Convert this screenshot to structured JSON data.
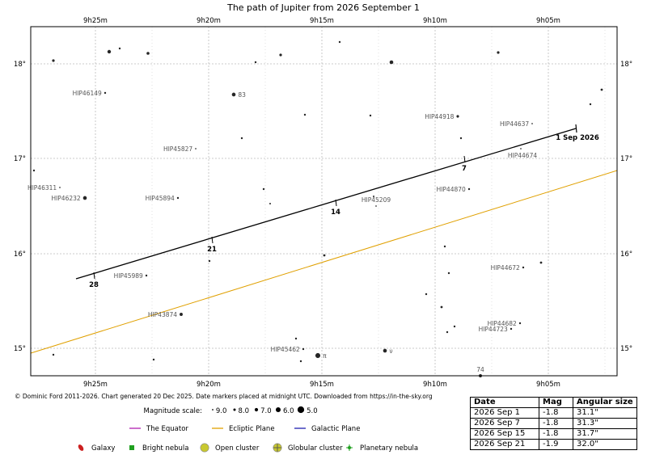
{
  "chart_data": {
    "type": "scatter",
    "title": "The path of Jupiter from 2026 September 1",
    "copyright": "© Dominic Ford 2011-2026. Chart generated 20 Dec 2025. Date markers placed at midnight UTC. Downloaded from https://in-the-sky.org",
    "x_ticks": [
      "9h25m",
      "9h20m",
      "9h15m",
      "9h10m",
      "9h05m"
    ],
    "y_ticks": [
      "18°",
      "17°",
      "16°",
      "15°"
    ],
    "grid": true,
    "path": {
      "start_label": "1 Sep 2026",
      "date_markers": [
        "7",
        "14",
        "21",
        "28"
      ]
    },
    "stars": [
      {
        "label": "HIP46149",
        "mag": 8.0
      },
      {
        "label": "83",
        "mag": 6.5
      },
      {
        "label": "HIP44918",
        "mag": 7.5
      },
      {
        "label": "HIP44637",
        "mag": 8.5
      },
      {
        "label": "HIP45827",
        "mag": 8.5
      },
      {
        "label": "HIP44674",
        "mag": 8.5
      },
      {
        "label": "HIP46311",
        "mag": 8.5
      },
      {
        "label": "HIP46232",
        "mag": 6.5
      },
      {
        "label": "HIP45894",
        "mag": 8.0
      },
      {
        "label": "HIP45209",
        "mag": 8.5
      },
      {
        "label": "HIP44870",
        "mag": 8.0
      },
      {
        "label": "HIP45989",
        "mag": 8.0
      },
      {
        "label": "HIP44672",
        "mag": 8.0
      },
      {
        "label": "HIP43874",
        "mag": 7.0
      },
      {
        "label": "HIP44682",
        "mag": 8.0
      },
      {
        "label": "HIP44723",
        "mag": 8.0
      },
      {
        "label": "HIP45462",
        "mag": 8.0
      },
      {
        "label": "π",
        "mag": 5.5
      },
      {
        "label": "ν",
        "mag": 6.5
      },
      {
        "label": "74",
        "mag": 7.0
      }
    ],
    "magnitude_scale": {
      "label": "Magnitude scale:",
      "values": [
        "9.0",
        "8.0",
        "7.0",
        "6.0",
        "5.0"
      ]
    },
    "legend": [
      {
        "name": "The Equator",
        "color": "#b020b0"
      },
      {
        "name": "Ecliptic Plane",
        "color": "#e0a000"
      },
      {
        "name": "Galactic Plane",
        "color": "#2020b0"
      }
    ],
    "object_legend": [
      {
        "name": "Galaxy",
        "icon": "galaxy-icon",
        "color": "#cc2020"
      },
      {
        "name": "Bright nebula",
        "icon": "bright-nebula-icon",
        "color": "#20a020"
      },
      {
        "name": "Open cluster",
        "icon": "open-cluster-icon",
        "color": "#c8c830"
      },
      {
        "name": "Globular cluster",
        "icon": "globular-cluster-icon",
        "color": "#c8c830"
      },
      {
        "name": "Planetary nebula",
        "icon": "planetary-nebula-icon",
        "color": "#20a020"
      }
    ],
    "table": {
      "headers": [
        "Date",
        "Mag",
        "Angular size"
      ],
      "rows": [
        [
          "2026 Sep 1",
          "-1.8",
          "31.1\""
        ],
        [
          "2026 Sep 7",
          "-1.8",
          "31.3\""
        ],
        [
          "2026 Sep 15",
          "-1.8",
          "31.7\""
        ],
        [
          "2026 Sep 21",
          "-1.9",
          "32.0\""
        ]
      ]
    }
  }
}
